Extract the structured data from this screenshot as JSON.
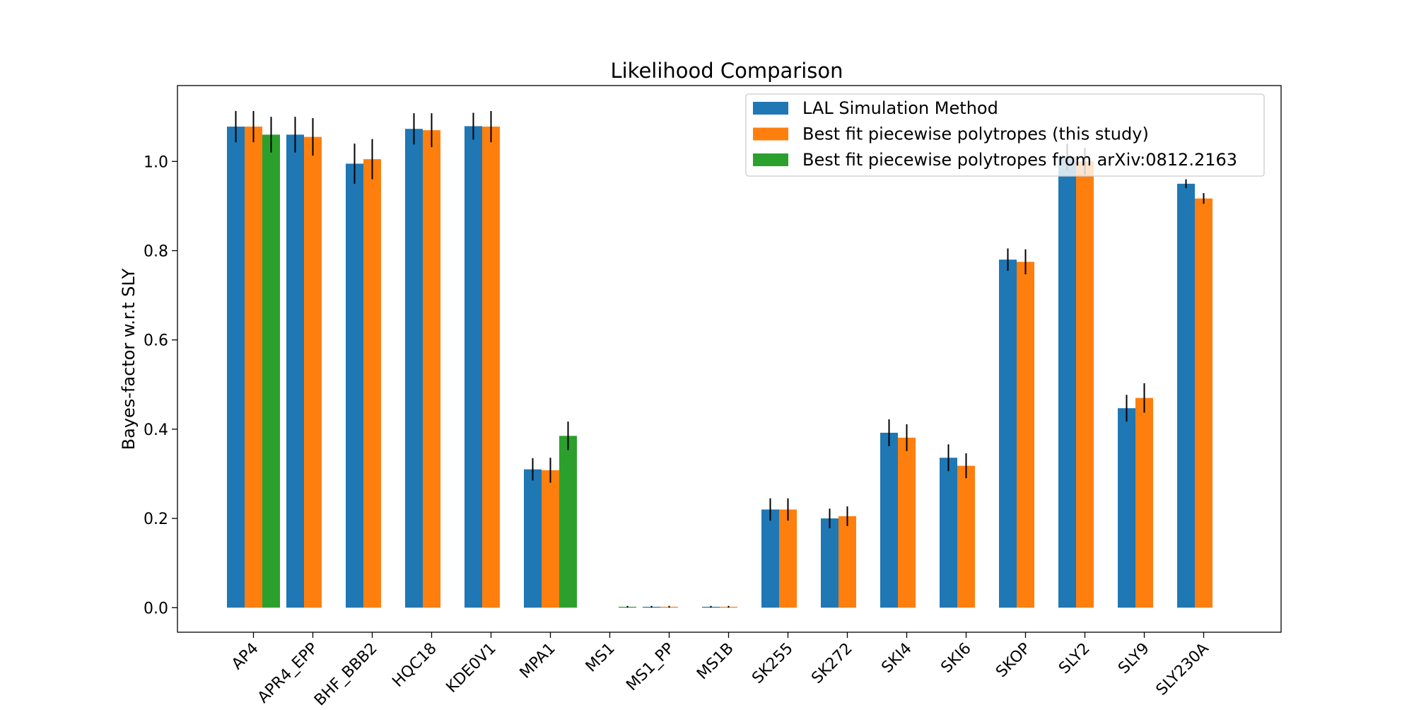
{
  "chart_data": {
    "type": "bar",
    "title": "Likelihood Comparison",
    "xlabel": "",
    "ylabel": "Bayes-factor w.r.t SLY",
    "ylim": [
      -0.055,
      1.17
    ],
    "yticks": [
      0.0,
      0.2,
      0.4,
      0.6,
      0.8,
      1.0
    ],
    "ytick_labels": [
      "0.0",
      "0.2",
      "0.4",
      "0.6",
      "0.8",
      "1.0"
    ],
    "grid": false,
    "legend_position": "top-right",
    "categories": [
      "AP4",
      "APR4_EPP",
      "BHF_BBB2",
      "HQC18",
      "KDE0V1",
      "MPA1",
      "MS1",
      "MS1_PP",
      "MS1B",
      "SK255",
      "SK272",
      "SKI4",
      "SKI6",
      "SKOP",
      "SLY2",
      "SLY9",
      "SLY230A"
    ],
    "series": [
      {
        "name": "LAL Simulation Method",
        "color": "#1f77b4",
        "values": [
          1.078,
          1.06,
          0.995,
          1.073,
          1.079,
          0.31,
          null,
          0.002,
          0.002,
          0.22,
          0.2,
          0.392,
          0.336,
          0.78,
          1.01,
          0.447,
          0.95
        ],
        "errors": [
          0.035,
          0.04,
          0.045,
          0.035,
          0.03,
          0.025,
          null,
          0.002,
          0.002,
          0.025,
          0.022,
          0.03,
          0.03,
          0.025,
          0.03,
          0.03,
          0.01
        ]
      },
      {
        "name": "Best fit piecewise polytropes (this study)",
        "color": "#ff7f0e",
        "values": [
          1.078,
          1.055,
          1.005,
          1.07,
          1.078,
          0.308,
          null,
          0.002,
          0.002,
          0.22,
          0.205,
          0.381,
          0.318,
          0.775,
          1.0,
          0.47,
          0.917
        ],
        "errors": [
          0.035,
          0.042,
          0.045,
          0.038,
          0.035,
          0.028,
          null,
          0.002,
          0.002,
          0.025,
          0.022,
          0.03,
          0.028,
          0.028,
          0.03,
          0.033,
          0.012
        ]
      },
      {
        "name": "Best fit piecewise polytropes from arXiv:0812.2163",
        "color": "#2ca02c",
        "values": [
          1.06,
          null,
          null,
          null,
          null,
          0.385,
          0.002,
          null,
          null,
          null,
          null,
          null,
          null,
          null,
          null,
          null,
          null
        ],
        "errors": [
          0.04,
          null,
          null,
          null,
          null,
          0.032,
          0.002,
          null,
          null,
          null,
          null,
          null,
          null,
          null,
          null,
          null,
          null
        ]
      }
    ]
  }
}
